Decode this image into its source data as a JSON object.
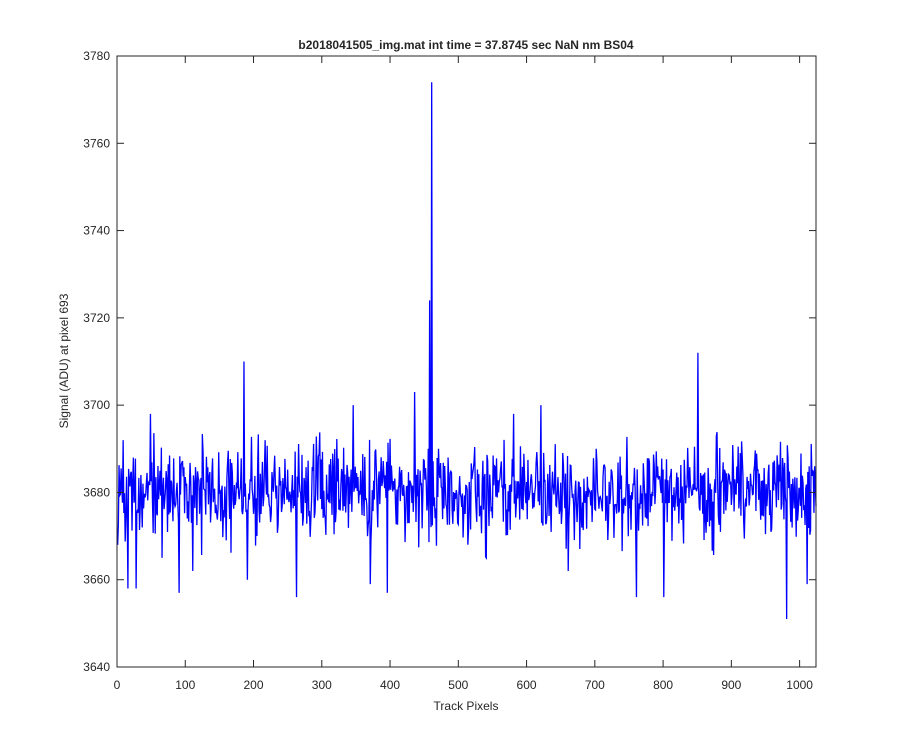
{
  "chart_data": {
    "type": "line",
    "title": "b2018041505_img.mat int time = 37.8745 sec  NaN nm BS04",
    "xlabel": "Track Pixels",
    "ylabel": "Signal (ADU) at pixel 693",
    "xlim": [
      0,
      1024
    ],
    "ylim": [
      3640,
      3780
    ],
    "xticks": [
      0,
      100,
      200,
      300,
      400,
      500,
      600,
      700,
      800,
      900,
      1000
    ],
    "yticks": [
      3640,
      3660,
      3680,
      3700,
      3720,
      3740,
      3760,
      3780
    ],
    "grid": false,
    "legend": "none",
    "colors": {
      "line": "#0000ff",
      "axes": "#262626",
      "background": "#ffffff"
    },
    "series": [
      {
        "length": 1024,
        "baseline": 3680,
        "noise_amplitude": 8,
        "random_seed": 2018041505,
        "features": [
          {
            "x": 15,
            "y": 3658
          },
          {
            "x": 27,
            "y": 3658
          },
          {
            "x": 48,
            "y": 3698
          },
          {
            "x": 65,
            "y": 3665
          },
          {
            "x": 90,
            "y": 3657
          },
          {
            "x": 110,
            "y": 3662
          },
          {
            "x": 185,
            "y": 3710
          },
          {
            "x": 190,
            "y": 3660
          },
          {
            "x": 262,
            "y": 3656
          },
          {
            "x": 345,
            "y": 3700
          },
          {
            "x": 370,
            "y": 3659
          },
          {
            "x": 395,
            "y": 3657
          },
          {
            "x": 435,
            "y": 3703
          },
          {
            "x": 457,
            "y": 3724
          },
          {
            "x": 460,
            "y": 3774
          },
          {
            "x": 470,
            "y": 3690
          },
          {
            "x": 540,
            "y": 3665
          },
          {
            "x": 580,
            "y": 3698
          },
          {
            "x": 620,
            "y": 3700
          },
          {
            "x": 660,
            "y": 3662
          },
          {
            "x": 760,
            "y": 3656
          },
          {
            "x": 800,
            "y": 3656
          },
          {
            "x": 850,
            "y": 3712
          },
          {
            "x": 980,
            "y": 3651
          },
          {
            "x": 1010,
            "y": 3659
          }
        ]
      }
    ]
  }
}
